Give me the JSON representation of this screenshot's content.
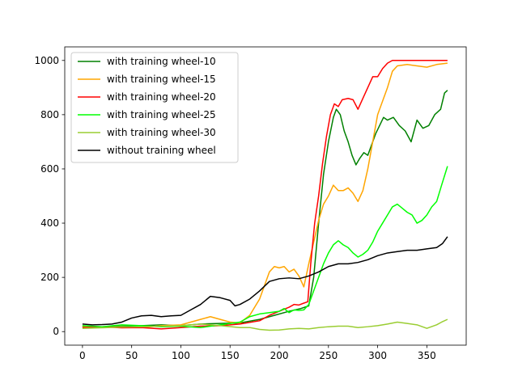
{
  "chart_data": {
    "type": "line",
    "title": "",
    "xlabel": "",
    "ylabel": "",
    "xlim": [
      -18,
      390
    ],
    "ylim": [
      -50,
      1050
    ],
    "x_ticks": [
      0,
      50,
      100,
      150,
      200,
      250,
      300,
      350
    ],
    "y_ticks": [
      0,
      200,
      400,
      600,
      800,
      1000
    ],
    "grid": false,
    "legend_position": "top-left",
    "series": [
      {
        "name": "with training wheel-10",
        "color": "#008000",
        "points": [
          [
            0,
            18
          ],
          [
            20,
            17
          ],
          [
            40,
            20
          ],
          [
            60,
            22
          ],
          [
            80,
            25
          ],
          [
            100,
            22
          ],
          [
            120,
            28
          ],
          [
            140,
            30
          ],
          [
            160,
            32
          ],
          [
            180,
            45
          ],
          [
            195,
            60
          ],
          [
            210,
            75
          ],
          [
            222,
            85
          ],
          [
            230,
            95
          ],
          [
            235,
            200
          ],
          [
            240,
            400
          ],
          [
            245,
            580
          ],
          [
            250,
            700
          ],
          [
            255,
            790
          ],
          [
            258,
            820
          ],
          [
            262,
            800
          ],
          [
            266,
            740
          ],
          [
            270,
            700
          ],
          [
            274,
            650
          ],
          [
            278,
            615
          ],
          [
            282,
            640
          ],
          [
            286,
            660
          ],
          [
            290,
            650
          ],
          [
            294,
            690
          ],
          [
            298,
            730
          ],
          [
            302,
            760
          ],
          [
            306,
            790
          ],
          [
            310,
            780
          ],
          [
            316,
            790
          ],
          [
            322,
            760
          ],
          [
            328,
            740
          ],
          [
            334,
            700
          ],
          [
            340,
            780
          ],
          [
            346,
            750
          ],
          [
            352,
            760
          ],
          [
            358,
            800
          ],
          [
            364,
            820
          ],
          [
            368,
            880
          ],
          [
            371,
            890
          ]
        ]
      },
      {
        "name": "with training wheel-15",
        "color": "#FFA500",
        "points": [
          [
            0,
            20
          ],
          [
            20,
            15
          ],
          [
            40,
            18
          ],
          [
            60,
            15
          ],
          [
            80,
            22
          ],
          [
            100,
            25
          ],
          [
            110,
            35
          ],
          [
            120,
            45
          ],
          [
            130,
            55
          ],
          [
            140,
            45
          ],
          [
            150,
            35
          ],
          [
            160,
            32
          ],
          [
            170,
            60
          ],
          [
            180,
            120
          ],
          [
            185,
            170
          ],
          [
            190,
            220
          ],
          [
            195,
            240
          ],
          [
            200,
            235
          ],
          [
            205,
            240
          ],
          [
            210,
            220
          ],
          [
            215,
            230
          ],
          [
            220,
            205
          ],
          [
            225,
            165
          ],
          [
            230,
            250
          ],
          [
            235,
            330
          ],
          [
            240,
            410
          ],
          [
            245,
            470
          ],
          [
            250,
            500
          ],
          [
            255,
            540
          ],
          [
            260,
            520
          ],
          [
            265,
            520
          ],
          [
            270,
            530
          ],
          [
            275,
            510
          ],
          [
            280,
            480
          ],
          [
            285,
            520
          ],
          [
            290,
            600
          ],
          [
            295,
            700
          ],
          [
            300,
            800
          ],
          [
            305,
            850
          ],
          [
            310,
            900
          ],
          [
            315,
            960
          ],
          [
            320,
            980
          ],
          [
            330,
            985
          ],
          [
            340,
            980
          ],
          [
            350,
            975
          ],
          [
            360,
            985
          ],
          [
            371,
            990
          ]
        ]
      },
      {
        "name": "with training wheel-20",
        "color": "#FF0000",
        "points": [
          [
            0,
            15
          ],
          [
            20,
            17
          ],
          [
            40,
            14
          ],
          [
            60,
            15
          ],
          [
            80,
            10
          ],
          [
            100,
            15
          ],
          [
            120,
            20
          ],
          [
            140,
            22
          ],
          [
            160,
            28
          ],
          [
            180,
            40
          ],
          [
            190,
            60
          ],
          [
            200,
            75
          ],
          [
            210,
            90
          ],
          [
            215,
            100
          ],
          [
            220,
            98
          ],
          [
            225,
            105
          ],
          [
            229,
            110
          ],
          [
            232,
            250
          ],
          [
            236,
            400
          ],
          [
            240,
            500
          ],
          [
            244,
            620
          ],
          [
            248,
            720
          ],
          [
            252,
            800
          ],
          [
            256,
            840
          ],
          [
            260,
            830
          ],
          [
            264,
            855
          ],
          [
            270,
            860
          ],
          [
            275,
            855
          ],
          [
            280,
            820
          ],
          [
            285,
            860
          ],
          [
            290,
            900
          ],
          [
            295,
            940
          ],
          [
            300,
            940
          ],
          [
            305,
            970
          ],
          [
            310,
            990
          ],
          [
            315,
            1000
          ],
          [
            330,
            1000
          ],
          [
            350,
            1000
          ],
          [
            371,
            1000
          ]
        ]
      },
      {
        "name": "with training wheel-25",
        "color": "#00FF00",
        "points": [
          [
            0,
            22
          ],
          [
            20,
            18
          ],
          [
            40,
            25
          ],
          [
            60,
            22
          ],
          [
            80,
            18
          ],
          [
            100,
            20
          ],
          [
            120,
            15
          ],
          [
            140,
            25
          ],
          [
            160,
            35
          ],
          [
            170,
            55
          ],
          [
            180,
            65
          ],
          [
            190,
            70
          ],
          [
            200,
            75
          ],
          [
            205,
            85
          ],
          [
            210,
            70
          ],
          [
            215,
            80
          ],
          [
            220,
            78
          ],
          [
            225,
            80
          ],
          [
            230,
            100
          ],
          [
            235,
            150
          ],
          [
            240,
            200
          ],
          [
            245,
            250
          ],
          [
            250,
            290
          ],
          [
            255,
            320
          ],
          [
            260,
            335
          ],
          [
            265,
            320
          ],
          [
            270,
            310
          ],
          [
            275,
            290
          ],
          [
            280,
            275
          ],
          [
            285,
            285
          ],
          [
            290,
            300
          ],
          [
            295,
            330
          ],
          [
            300,
            370
          ],
          [
            305,
            400
          ],
          [
            310,
            430
          ],
          [
            315,
            460
          ],
          [
            320,
            470
          ],
          [
            325,
            455
          ],
          [
            330,
            440
          ],
          [
            335,
            430
          ],
          [
            340,
            400
          ],
          [
            345,
            410
          ],
          [
            350,
            430
          ],
          [
            355,
            460
          ],
          [
            360,
            480
          ],
          [
            365,
            540
          ],
          [
            371,
            610
          ]
        ]
      },
      {
        "name": "with training wheel-30",
        "color": "#9ACD32",
        "points": [
          [
            0,
            12
          ],
          [
            20,
            14
          ],
          [
            40,
            17
          ],
          [
            60,
            18
          ],
          [
            80,
            20
          ],
          [
            100,
            22
          ],
          [
            120,
            28
          ],
          [
            140,
            22
          ],
          [
            160,
            15
          ],
          [
            170,
            15
          ],
          [
            180,
            8
          ],
          [
            190,
            5
          ],
          [
            200,
            6
          ],
          [
            210,
            10
          ],
          [
            220,
            12
          ],
          [
            230,
            10
          ],
          [
            240,
            15
          ],
          [
            250,
            18
          ],
          [
            260,
            20
          ],
          [
            270,
            20
          ],
          [
            280,
            15
          ],
          [
            290,
            18
          ],
          [
            300,
            22
          ],
          [
            310,
            28
          ],
          [
            320,
            35
          ],
          [
            330,
            30
          ],
          [
            340,
            25
          ],
          [
            350,
            12
          ],
          [
            360,
            25
          ],
          [
            365,
            35
          ],
          [
            371,
            45
          ]
        ]
      },
      {
        "name": "without training wheel",
        "color": "#000000",
        "points": [
          [
            0,
            28
          ],
          [
            10,
            25
          ],
          [
            20,
            26
          ],
          [
            30,
            28
          ],
          [
            40,
            35
          ],
          [
            50,
            50
          ],
          [
            60,
            58
          ],
          [
            70,
            60
          ],
          [
            80,
            55
          ],
          [
            90,
            58
          ],
          [
            100,
            60
          ],
          [
            110,
            80
          ],
          [
            120,
            100
          ],
          [
            130,
            130
          ],
          [
            140,
            125
          ],
          [
            150,
            115
          ],
          [
            155,
            95
          ],
          [
            160,
            100
          ],
          [
            170,
            120
          ],
          [
            180,
            150
          ],
          [
            190,
            185
          ],
          [
            200,
            195
          ],
          [
            210,
            198
          ],
          [
            220,
            195
          ],
          [
            230,
            205
          ],
          [
            240,
            220
          ],
          [
            250,
            240
          ],
          [
            260,
            250
          ],
          [
            270,
            250
          ],
          [
            280,
            255
          ],
          [
            290,
            265
          ],
          [
            300,
            280
          ],
          [
            310,
            290
          ],
          [
            320,
            295
          ],
          [
            330,
            300
          ],
          [
            340,
            300
          ],
          [
            350,
            305
          ],
          [
            360,
            310
          ],
          [
            366,
            325
          ],
          [
            371,
            350
          ]
        ]
      }
    ]
  }
}
